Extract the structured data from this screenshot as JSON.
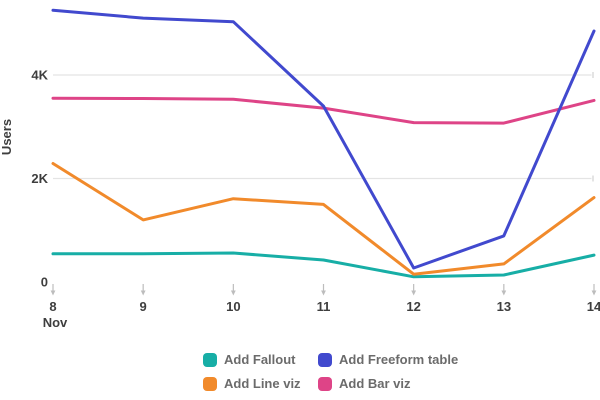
{
  "chart_data": {
    "type": "line",
    "title": "",
    "ylabel": "Users",
    "xlabel_month": "Nov",
    "x_categories": [
      "8",
      "9",
      "10",
      "11",
      "12",
      "13",
      "14"
    ],
    "y_ticks": [
      {
        "label": "0",
        "value": 0
      },
      {
        "label": "2K",
        "value": 2000
      },
      {
        "label": "4K",
        "value": 4000
      }
    ],
    "ylim": [
      0,
      5450
    ],
    "grid_values": [
      2000,
      4000
    ],
    "grid_on": true,
    "legend_position": "bottom",
    "series": [
      {
        "name": "Add Fallout",
        "color": "#17aea6",
        "values": [
          545,
          545,
          560,
          425,
          100,
          135,
          520
        ]
      },
      {
        "name": "Add Line viz",
        "color": "#f18a2b",
        "values": [
          2290,
          1200,
          1610,
          1500,
          150,
          350,
          1630
        ]
      },
      {
        "name": "Add Bar viz",
        "color": "#de4487",
        "values": [
          3550,
          3545,
          3530,
          3360,
          3080,
          3070,
          3510
        ]
      },
      {
        "name": "Add Freeform table",
        "color": "#4149ce",
        "values": [
          5250,
          5100,
          5030,
          3400,
          270,
          890,
          4850
        ]
      }
    ],
    "style": {
      "grid_color": "#e4e4e4",
      "arrow_color": "#bdbdbd",
      "axis_text_color": "#3e3e3e",
      "line_width": 3
    }
  },
  "legend": {
    "items": [
      {
        "label": "Add Fallout",
        "color": "#17aea6"
      },
      {
        "label": "Add Freeform table",
        "color": "#4149ce"
      },
      {
        "label": "Add Line viz",
        "color": "#f18a2b"
      },
      {
        "label": "Add Bar viz",
        "color": "#de4487"
      }
    ]
  }
}
